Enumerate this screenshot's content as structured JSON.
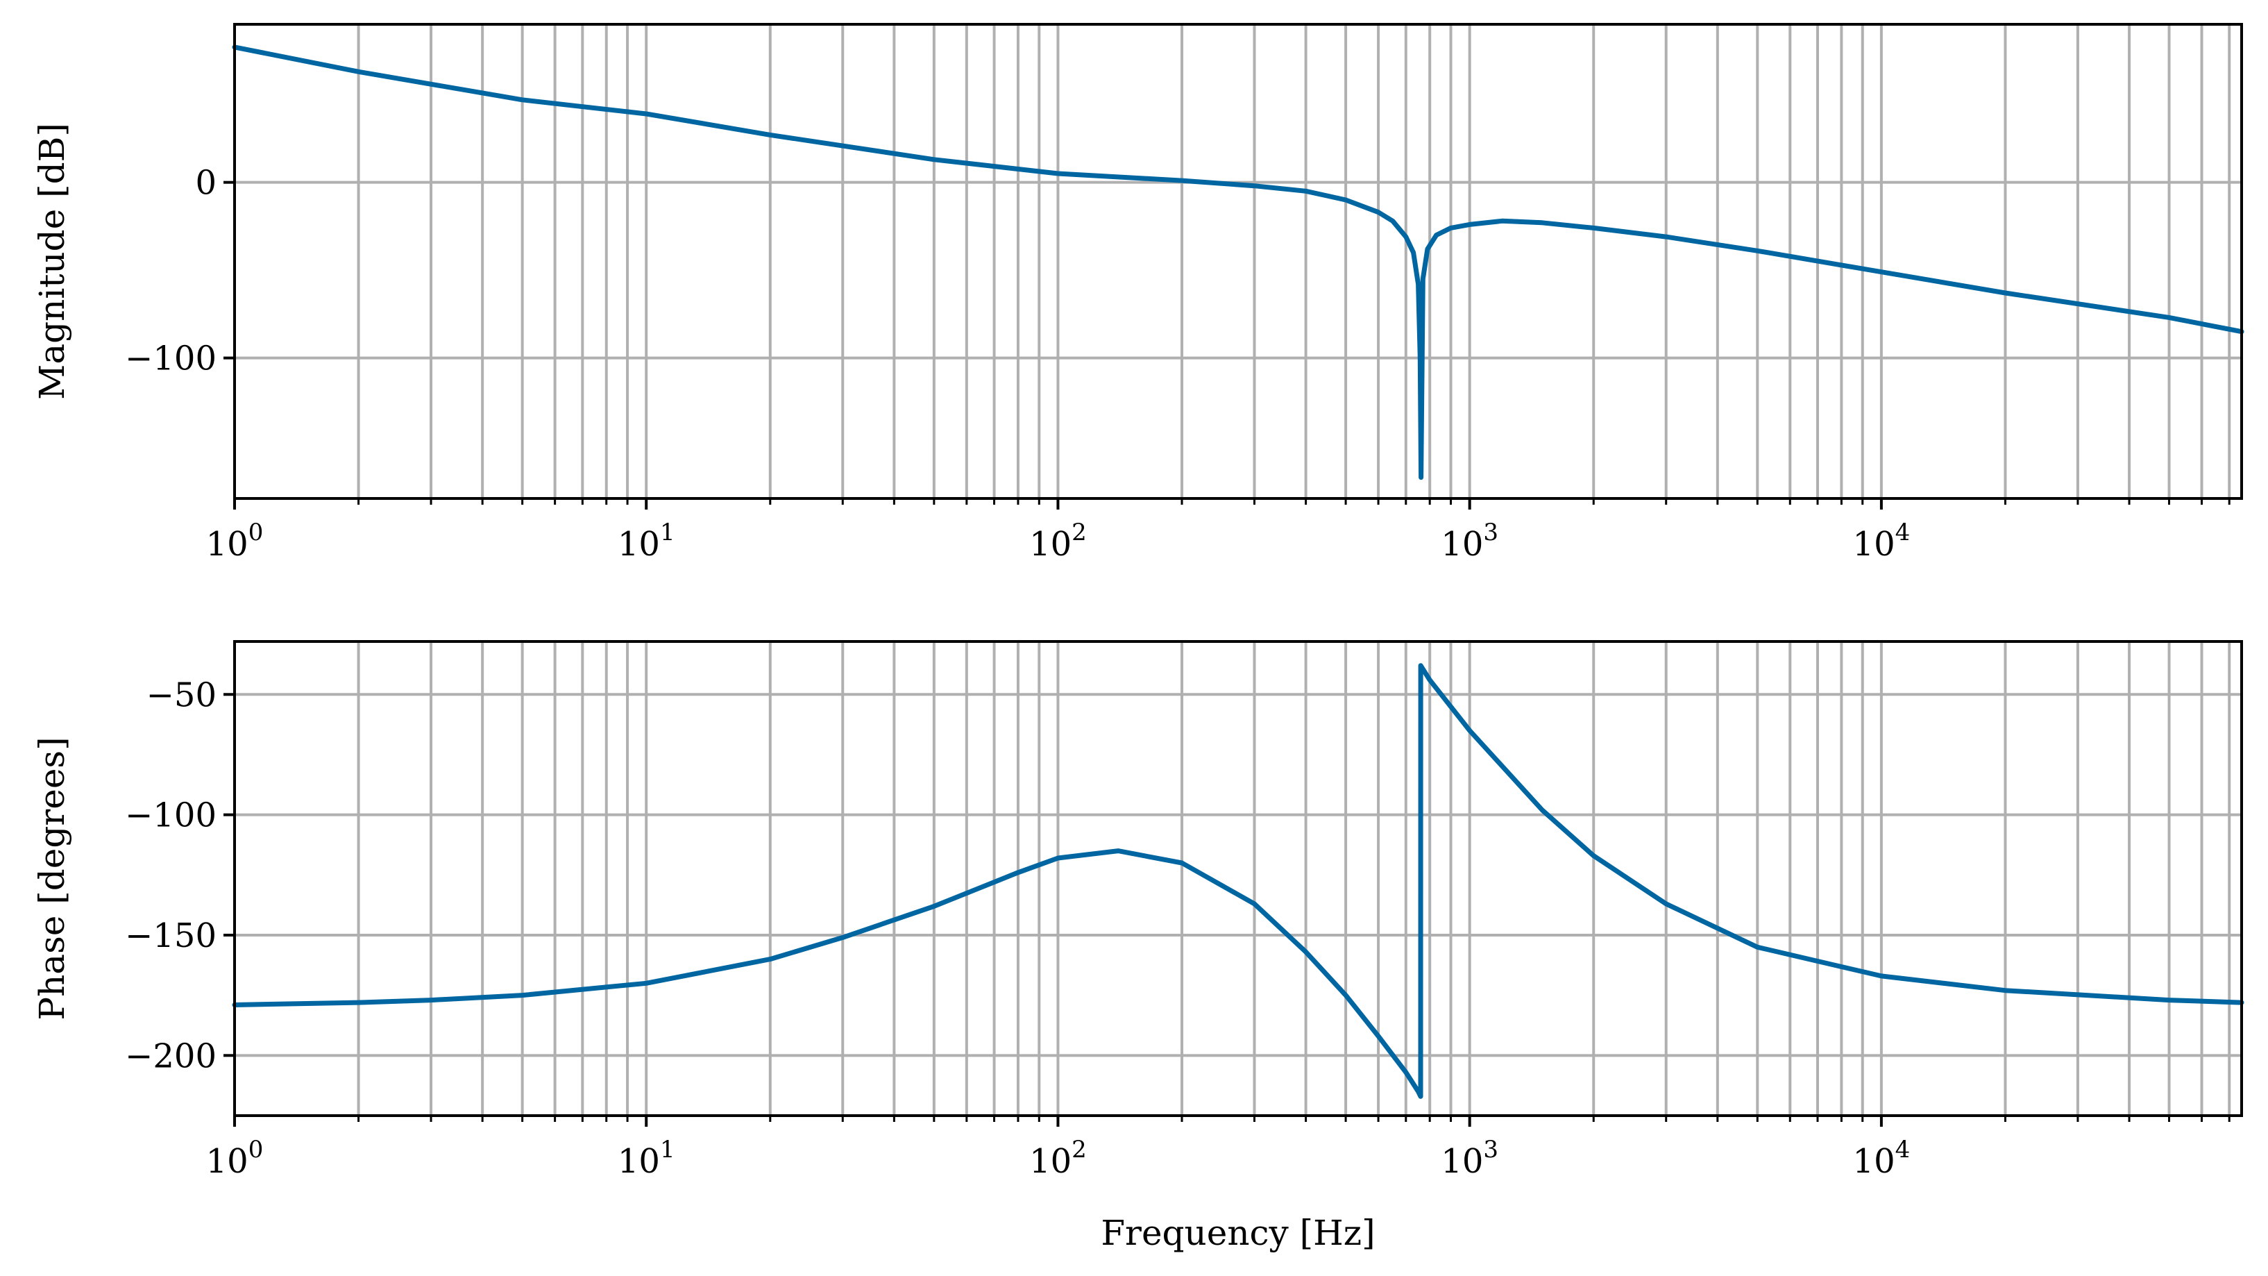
{
  "chart_data": [
    {
      "type": "line",
      "panel": "top",
      "title": "",
      "xlabel": "",
      "ylabel": "Magnitude [dB]",
      "xscale": "log",
      "xlim": [
        1,
        75000
      ],
      "ylim": [
        -180,
        90
      ],
      "grid": true,
      "yticks": [
        0,
        -100
      ],
      "ytick_labels": [
        "0",
        "−100"
      ],
      "xticks": [
        1,
        10,
        100,
        1000,
        10000
      ],
      "xtick_labels": [
        {
          "base": "10",
          "exp": "0"
        },
        {
          "base": "10",
          "exp": "1"
        },
        {
          "base": "10",
          "exp": "2"
        },
        {
          "base": "10",
          "exp": "3"
        },
        {
          "base": "10",
          "exp": "4"
        }
      ],
      "series": [
        {
          "name": "magnitude",
          "color": "#0066a2",
          "x": [
            1,
            2,
            5,
            10,
            20,
            50,
            100,
            200,
            300,
            400,
            500,
            600,
            650,
            700,
            730,
            750,
            758,
            762,
            770,
            790,
            830,
            900,
            1000,
            1200,
            1500,
            2000,
            3000,
            5000,
            10000,
            20000,
            50000,
            75000
          ],
          "y": [
            77,
            63,
            47,
            39,
            27,
            13,
            5,
            1,
            -2,
            -5,
            -10,
            -17,
            -22,
            -31,
            -40,
            -58,
            -100,
            -168,
            -55,
            -38,
            -30,
            -26,
            -24,
            -22,
            -23,
            -26,
            -31,
            -39,
            -51,
            -63,
            -77,
            -85
          ]
        }
      ]
    },
    {
      "type": "line",
      "panel": "bottom",
      "title": "",
      "xlabel": "Frequency [Hz]",
      "ylabel": "Phase [degrees]",
      "xscale": "log",
      "xlim": [
        1,
        75000
      ],
      "ylim": [
        -225,
        -28
      ],
      "grid": true,
      "yticks": [
        -50,
        -100,
        -150,
        -200
      ],
      "ytick_labels": [
        "−50",
        "−100",
        "−150",
        "−200"
      ],
      "xticks": [
        1,
        10,
        100,
        1000,
        10000
      ],
      "xtick_labels": [
        {
          "base": "10",
          "exp": "0"
        },
        {
          "base": "10",
          "exp": "1"
        },
        {
          "base": "10",
          "exp": "2"
        },
        {
          "base": "10",
          "exp": "3"
        },
        {
          "base": "10",
          "exp": "4"
        }
      ],
      "series": [
        {
          "name": "phase",
          "color": "#0066a2",
          "x": [
            1,
            2,
            3,
            5,
            10,
            20,
            30,
            50,
            80,
            100,
            140,
            200,
            300,
            400,
            500,
            600,
            700,
            750,
            760,
            760.5,
            800,
            1000,
            1500,
            2000,
            3000,
            5000,
            10000,
            20000,
            50000,
            75000
          ],
          "y": [
            -179,
            -178,
            -177,
            -175,
            -170,
            -160,
            -151,
            -138,
            -124,
            -118,
            -115,
            -120,
            -137,
            -157,
            -175,
            -192,
            -207,
            -215,
            -217,
            -38,
            -44,
            -65,
            -98,
            -117,
            -137,
            -155,
            -167,
            -173,
            -177,
            -178
          ]
        }
      ]
    }
  ]
}
